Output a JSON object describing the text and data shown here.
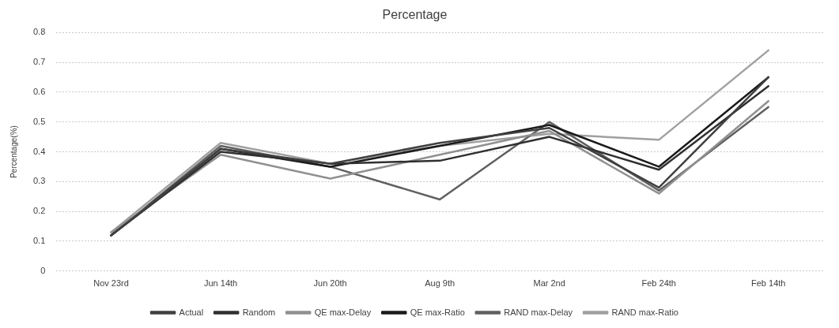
{
  "chart_data": {
    "type": "line",
    "title": "Percentage",
    "ylabel": "Percentage(%)",
    "categories": [
      "Nov 23rd",
      "Jun 14th",
      "Jun 20th",
      "Aug 9th",
      "Mar 2nd",
      "Feb 24th",
      "Feb 14th"
    ],
    "series": [
      {
        "name": "Actual",
        "color": "#404040",
        "values": [
          0.12,
          0.41,
          0.36,
          0.43,
          0.48,
          0.28,
          0.65
        ]
      },
      {
        "name": "Random",
        "color": "#303030",
        "values": [
          0.12,
          0.4,
          0.36,
          0.37,
          0.45,
          0.34,
          0.62
        ]
      },
      {
        "name": "QE max-Delay",
        "color": "#909090",
        "values": [
          0.13,
          0.39,
          0.31,
          0.39,
          0.47,
          0.26,
          0.57
        ]
      },
      {
        "name": "QE max-Ratio",
        "color": "#1a1a1a",
        "values": [
          0.12,
          0.41,
          0.35,
          0.42,
          0.49,
          0.35,
          0.65
        ]
      },
      {
        "name": "RAND max-Delay",
        "color": "#606060",
        "values": [
          0.12,
          0.42,
          0.35,
          0.24,
          0.5,
          0.27,
          0.55
        ]
      },
      {
        "name": "RAND max-Ratio",
        "color": "#a0a0a0",
        "values": [
          0.13,
          0.43,
          0.36,
          0.42,
          0.46,
          0.44,
          0.74
        ]
      }
    ],
    "ylim": [
      0,
      0.8
    ],
    "yticks": [
      {
        "value": 0,
        "label": "0"
      },
      0.1,
      0.2,
      0.3,
      0.4,
      0.5,
      0.6,
      0.7,
      0.8
    ],
    "grid": "y",
    "legend": "bottom",
    "marker": "none",
    "line_style": "solid"
  }
}
